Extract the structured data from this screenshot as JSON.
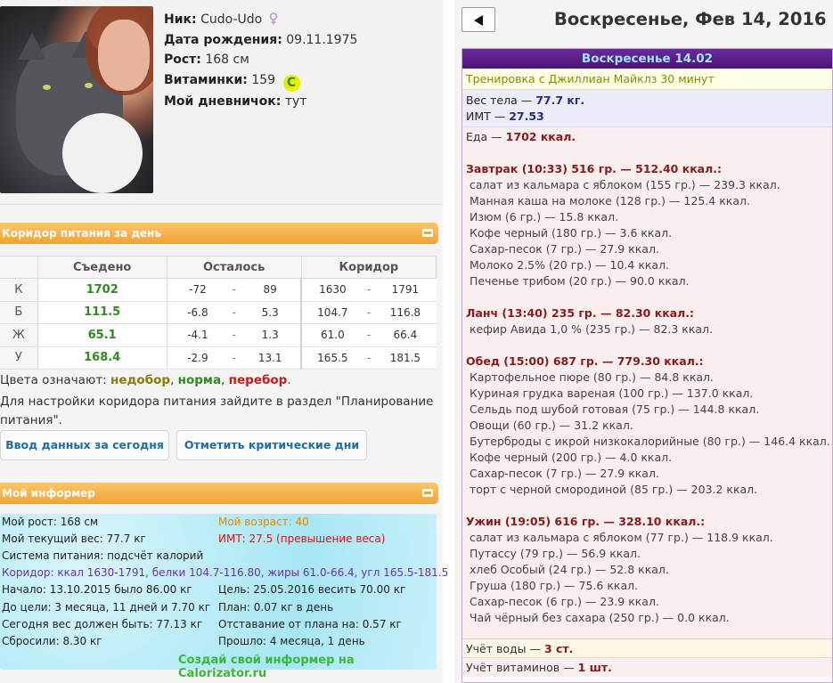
{
  "profile": {
    "nick_label": "Ник:",
    "nick": "Cudo-Udo",
    "birth_label": "Дата рождения:",
    "birth": "09.11.1975",
    "height_label": "Рост:",
    "height": "168 см",
    "vitamins_label": "Витаминки:",
    "vitamins": "159",
    "vitamin_icon": "C",
    "diary_label": "Мой дневничок:",
    "diary_link": "тут"
  },
  "corridor": {
    "title": "Коридор питания за день",
    "headers": [
      "Съедено",
      "Осталось",
      "Коридор"
    ],
    "rows": [
      {
        "label": "К",
        "eaten": "1702",
        "left_min": "-72",
        "left_max": "89",
        "cor_min": "1630",
        "cor_max": "1791"
      },
      {
        "label": "Б",
        "eaten": "111.5",
        "left_min": "-6.8",
        "left_max": "5.3",
        "cor_min": "104.7",
        "cor_max": "116.8"
      },
      {
        "label": "Ж",
        "eaten": "65.1",
        "left_min": "-4.1",
        "left_max": "1.3",
        "cor_min": "61.0",
        "cor_max": "66.4"
      },
      {
        "label": "У",
        "eaten": "168.4",
        "left_min": "-2.9",
        "left_max": "13.1",
        "cor_min": "165.5",
        "cor_max": "181.5"
      }
    ],
    "dash": "-",
    "colors_prefix": "Цвета означают:",
    "color_under": "недобор",
    "color_norm": "норма",
    "color_over": "перебор",
    "hint": "Для настройки коридора питания зайдите в раздел \"Планирование питания\".",
    "btn_enter": "Ввод данных за сегодня",
    "btn_critical": "Отметить критические дни"
  },
  "informer": {
    "title": "Мой информер",
    "height": "Мой рост: 168 см",
    "age": "Мой возраст: 40",
    "weight": "Мой текущий вес: 77.7 кг",
    "bmi": "ИМТ: 27.5 (превышение веса)",
    "system": "Система питания: подсчёт калорий",
    "corridor": "Коридор: ккал 1630-1791, белки 104.7-116.80, жиры 61.0-66.4, угл 165.5-181.5",
    "start": "Начало: 13.10.2015 было 86.00 кг",
    "goal": "Цель: 25.05.2016 весить 70.00 кг",
    "to_goal": "До цели: 3 месяца, 11 дней и 7.70 кг",
    "plan": "План: 0.07 кг в день",
    "should": "Сегодня вес должен быть: 77.13 кг",
    "behind": "Отставание от плана на: 0.57 кг",
    "lost": "Сбросили: 8.30 кг",
    "passed": "Прошло: 4 месяца, 1 день",
    "footer": "Создай свой информер на Calorizator.ru"
  },
  "diary": {
    "day_title": "Воскресенье, Фев 14, 2016",
    "head": "Воскресенье 14.02",
    "training": "Тренировка с Джиллиан Майклз 30 минут",
    "weight_label": "Вес тела —",
    "weight": "77.7 кг.",
    "bmi_label": "ИМТ —",
    "bmi": "27.53",
    "food_label": "Еда —",
    "food_total": "1702 ккал.",
    "breakfast": "Завтрак (10:33) 516 гр. — 512.40 ккал.:",
    "breakfast_items": [
      "салат из кальмара с яблоком (155 гр.) — 239.3 ккал.",
      "Манная каша на молоке (128 гр.) — 125.4 ккал.",
      "Изюм (6 гр.) — 15.8 ккал.",
      "Кофе черный (180 гр.) — 3.6 ккал.",
      "Сахар-песок (7 гр.) — 27.9 ккал.",
      "Молоко 2.5% (20 гр.) — 10.4 ккал.",
      "Печенье трибом (20 гр.) — 90.0 ккал."
    ],
    "lunch": "Ланч (13:40) 235 гр. — 82.30 ккал.:",
    "lunch_items": [
      "кефир Авида 1,0 % (235 гр.) — 82.3 ккал."
    ],
    "dinner": "Обед (15:00) 687 гр. — 779.30 ккал.:",
    "dinner_items": [
      "Картофельное пюре (80 гр.) — 84.8 ккал.",
      "Куриная грудка вареная (100 гр.) — 137.0 ккал.",
      "Сельдь под шубой готовая (75 гр.) — 144.8 ккал.",
      "Овощи (60 гр.) — 31.2 ккал.",
      "Бутерброды с икрой низкокалорийные (80 гр.) — 146.4 ккал.",
      "Кофе черный (200 гр.) — 4.0 ккал.",
      "Сахар-песок (7 гр.) — 27.9 ккал.",
      "торт с черной смородиной (85 гр.) — 203.2 ккал."
    ],
    "supper": "Ужин (19:05) 616 гр. — 328.10 ккал.:",
    "supper_items": [
      "салат из кальмара с яблоком (77 гр.) — 118.9 ккал.",
      "Путассу (79 гр.) — 56.9 ккал.",
      "хлеб Особый (24 гр.) — 52.8 ккал.",
      "Груша (180 гр.) — 75.6 ккал.",
      "Сахар-песок (6 гр.) — 23.9 ккал.",
      "Чай чёрный без сахара (250 гр.) — 0.0 ккал."
    ],
    "water_label": "Учёт воды —",
    "water": "3 ст.",
    "vit_label": "Учёт витаминов —",
    "vit": "1 шт."
  }
}
